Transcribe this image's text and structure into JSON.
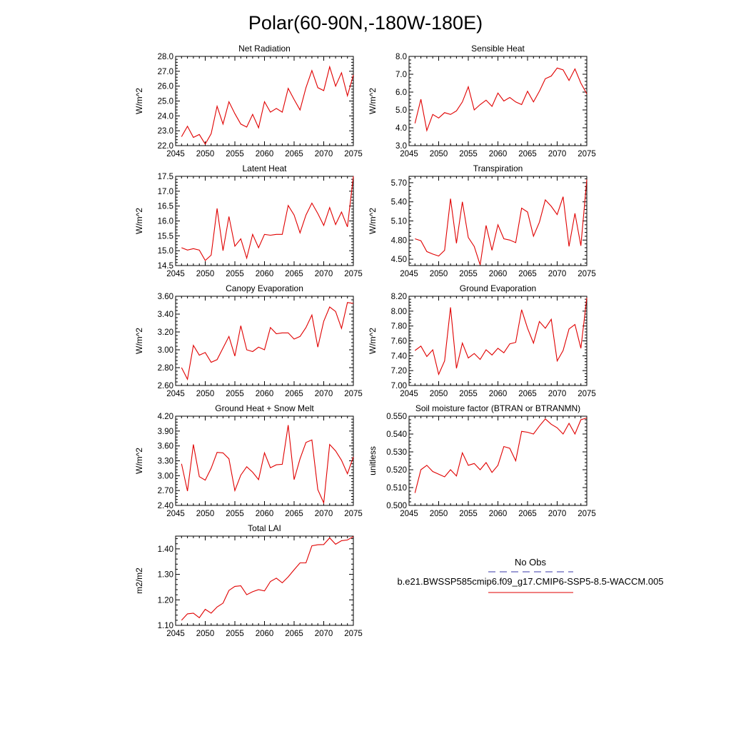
{
  "figure": {
    "title": "Polar(60-90N,-180W-180E)",
    "legend": {
      "obs_label": "No Obs",
      "model_label": "b.e21.BWSSP585cmip6.f09_g17.CMIP6-SSP5-8.5-WACCM.005",
      "obs_color": "#3a3aa8",
      "model_color": "#e00000"
    }
  },
  "chart_data": [
    {
      "type": "line",
      "title": "Net Radiation",
      "ylabel": "W/m^2",
      "xlim": [
        2045,
        2075
      ],
      "ylim": [
        22.0,
        28.0
      ],
      "yticks": [
        "22.0",
        "23.0",
        "24.0",
        "25.0",
        "26.0",
        "27.0",
        "28.0"
      ],
      "xticks": [
        "2045",
        "2050",
        "2055",
        "2060",
        "2065",
        "2070",
        "2075"
      ],
      "x": [
        2046,
        2047,
        2048,
        2049,
        2050,
        2051,
        2052,
        2053,
        2054,
        2055,
        2056,
        2057,
        2058,
        2059,
        2060,
        2061,
        2062,
        2063,
        2064,
        2065,
        2066,
        2067,
        2068,
        2069,
        2070,
        2071,
        2072,
        2073,
        2074,
        2075
      ],
      "series": [
        {
          "color": "#e00000",
          "values": [
            22.6,
            23.3,
            22.55,
            22.75,
            22.1,
            22.8,
            24.65,
            23.45,
            24.95,
            24.15,
            23.45,
            23.25,
            24.1,
            23.2,
            24.95,
            24.25,
            24.5,
            24.25,
            25.85,
            25.1,
            24.4,
            25.9,
            27.05,
            25.9,
            25.7,
            27.3,
            26.0,
            26.9,
            25.35,
            26.75
          ]
        }
      ]
    },
    {
      "type": "line",
      "title": "Sensible Heat",
      "ylabel": "W/m^2",
      "xlim": [
        2045,
        2075
      ],
      "ylim": [
        3.0,
        8.0
      ],
      "yticks": [
        "3.0",
        "4.0",
        "5.0",
        "6.0",
        "7.0",
        "8.0"
      ],
      "xticks": [
        "2045",
        "2050",
        "2055",
        "2060",
        "2065",
        "2070",
        "2075"
      ],
      "x": [
        2046,
        2047,
        2048,
        2049,
        2050,
        2051,
        2052,
        2053,
        2054,
        2055,
        2056,
        2057,
        2058,
        2059,
        2060,
        2061,
        2062,
        2063,
        2064,
        2065,
        2066,
        2067,
        2068,
        2069,
        2070,
        2071,
        2072,
        2073,
        2074,
        2075
      ],
      "series": [
        {
          "color": "#e00000",
          "values": [
            4.25,
            5.6,
            3.85,
            4.75,
            4.55,
            4.85,
            4.75,
            4.95,
            5.45,
            6.3,
            5.0,
            5.3,
            5.55,
            5.2,
            5.95,
            5.5,
            5.7,
            5.45,
            5.3,
            6.05,
            5.45,
            6.05,
            6.75,
            6.9,
            7.35,
            7.25,
            6.65,
            7.3,
            6.5,
            5.9
          ]
        }
      ]
    },
    {
      "type": "line",
      "title": "Latent Heat",
      "ylabel": "W/m^2",
      "xlim": [
        2045,
        2075
      ],
      "ylim": [
        14.5,
        17.5
      ],
      "yticks": [
        "14.5",
        "15.0",
        "15.5",
        "16.0",
        "16.5",
        "17.0",
        "17.5"
      ],
      "xticks": [
        "2045",
        "2050",
        "2055",
        "2060",
        "2065",
        "2070",
        "2075"
      ],
      "x": [
        2046,
        2047,
        2048,
        2049,
        2050,
        2051,
        2052,
        2053,
        2054,
        2055,
        2056,
        2057,
        2058,
        2059,
        2060,
        2061,
        2062,
        2063,
        2064,
        2065,
        2066,
        2067,
        2068,
        2069,
        2070,
        2071,
        2072,
        2073,
        2074,
        2075
      ],
      "series": [
        {
          "color": "#e00000",
          "values": [
            15.1,
            15.02,
            15.07,
            15.02,
            14.67,
            14.85,
            16.42,
            15.0,
            16.15,
            15.15,
            15.4,
            14.75,
            15.55,
            15.1,
            15.55,
            15.52,
            15.55,
            15.55,
            16.52,
            16.2,
            15.6,
            16.2,
            16.6,
            16.25,
            15.85,
            16.45,
            15.88,
            16.3,
            15.8,
            17.5
          ]
        }
      ]
    },
    {
      "type": "line",
      "title": "Transpiration",
      "ylabel": "W/m^2",
      "xlim": [
        2045,
        2075
      ],
      "ylim": [
        4.4,
        5.8
      ],
      "yticks": [
        "4.50",
        "4.80",
        "5.10",
        "5.40",
        "5.70"
      ],
      "ytick_values": [
        4.5,
        4.8,
        5.1,
        5.4,
        5.7
      ],
      "xticks": [
        "2045",
        "2050",
        "2055",
        "2060",
        "2065",
        "2070",
        "2075"
      ],
      "x": [
        2046,
        2047,
        2048,
        2049,
        2050,
        2051,
        2052,
        2053,
        2054,
        2055,
        2056,
        2057,
        2058,
        2059,
        2060,
        2061,
        2062,
        2063,
        2064,
        2065,
        2066,
        2067,
        2068,
        2069,
        2070,
        2071,
        2072,
        2073,
        2074,
        2075
      ],
      "series": [
        {
          "color": "#e00000",
          "values": [
            4.82,
            4.79,
            4.62,
            4.58,
            4.55,
            4.64,
            5.45,
            4.75,
            5.4,
            4.84,
            4.7,
            4.41,
            5.03,
            4.64,
            5.04,
            4.82,
            4.8,
            4.76,
            5.3,
            5.24,
            4.86,
            5.08,
            5.43,
            5.33,
            5.2,
            5.48,
            4.7,
            5.22,
            4.71,
            5.75
          ]
        }
      ]
    },
    {
      "type": "line",
      "title": "Canopy Evaporation",
      "ylabel": "W/m^2",
      "xlim": [
        2045,
        2075
      ],
      "ylim": [
        2.6,
        3.6
      ],
      "yticks": [
        "2.60",
        "2.80",
        "3.00",
        "3.20",
        "3.40",
        "3.60"
      ],
      "xticks": [
        "2045",
        "2050",
        "2055",
        "2060",
        "2065",
        "2070",
        "2075"
      ],
      "x": [
        2046,
        2047,
        2048,
        2049,
        2050,
        2051,
        2052,
        2053,
        2054,
        2055,
        2056,
        2057,
        2058,
        2059,
        2060,
        2061,
        2062,
        2063,
        2064,
        2065,
        2066,
        2067,
        2068,
        2069,
        2070,
        2071,
        2072,
        2073,
        2074,
        2075
      ],
      "series": [
        {
          "color": "#e00000",
          "values": [
            2.8,
            2.67,
            3.05,
            2.94,
            2.97,
            2.86,
            2.89,
            3.02,
            3.15,
            2.93,
            3.27,
            3.0,
            2.98,
            3.03,
            3.0,
            3.25,
            3.18,
            3.19,
            3.19,
            3.12,
            3.15,
            3.25,
            3.39,
            3.03,
            3.32,
            3.48,
            3.43,
            3.24,
            3.53,
            3.52
          ]
        }
      ]
    },
    {
      "type": "line",
      "title": "Ground Evaporation",
      "ylabel": "W/m^2",
      "xlim": [
        2045,
        2075
      ],
      "ylim": [
        7.0,
        8.2
      ],
      "yticks": [
        "7.00",
        "7.20",
        "7.40",
        "7.60",
        "7.80",
        "8.00",
        "8.20"
      ],
      "xticks": [
        "2045",
        "2050",
        "2055",
        "2060",
        "2065",
        "2070",
        "2075"
      ],
      "x": [
        2046,
        2047,
        2048,
        2049,
        2050,
        2051,
        2052,
        2053,
        2054,
        2055,
        2056,
        2057,
        2058,
        2059,
        2060,
        2061,
        2062,
        2063,
        2064,
        2065,
        2066,
        2067,
        2068,
        2069,
        2070,
        2071,
        2072,
        2073,
        2074,
        2075
      ],
      "series": [
        {
          "color": "#e00000",
          "values": [
            7.47,
            7.53,
            7.39,
            7.48,
            7.15,
            7.33,
            8.05,
            7.23,
            7.57,
            7.37,
            7.43,
            7.35,
            7.48,
            7.41,
            7.5,
            7.44,
            7.56,
            7.58,
            8.02,
            7.77,
            7.57,
            7.86,
            7.77,
            7.89,
            7.33,
            7.47,
            7.76,
            7.82,
            7.5,
            8.18
          ]
        }
      ]
    },
    {
      "type": "line",
      "title": "Ground Heat + Snow Melt",
      "ylabel": "W/m^2",
      "xlim": [
        2045,
        2075
      ],
      "ylim": [
        2.4,
        4.2
      ],
      "yticks": [
        "2.40",
        "2.70",
        "3.00",
        "3.30",
        "3.60",
        "3.90",
        "4.20"
      ],
      "xticks": [
        "2045",
        "2050",
        "2055",
        "2060",
        "2065",
        "2070",
        "2075"
      ],
      "x": [
        2046,
        2047,
        2048,
        2049,
        2050,
        2051,
        2052,
        2053,
        2054,
        2055,
        2056,
        2057,
        2058,
        2059,
        2060,
        2061,
        2062,
        2063,
        2064,
        2065,
        2066,
        2067,
        2068,
        2069,
        2070,
        2071,
        2072,
        2073,
        2074,
        2075
      ],
      "series": [
        {
          "color": "#e00000",
          "values": [
            3.24,
            2.69,
            3.63,
            2.98,
            2.91,
            3.15,
            3.47,
            3.46,
            3.34,
            2.7,
            3.01,
            3.18,
            3.07,
            2.92,
            3.46,
            3.16,
            3.22,
            3.23,
            4.02,
            2.92,
            3.34,
            3.67,
            3.72,
            2.72,
            2.45,
            3.63,
            3.5,
            3.31,
            3.04,
            3.38
          ]
        }
      ]
    },
    {
      "type": "line",
      "title": "Soil moisture factor (BTRAN or BTRANMN)",
      "ylabel": "unitless",
      "xlim": [
        2045,
        2075
      ],
      "ylim": [
        0.5,
        0.55
      ],
      "yticks": [
        "0.500",
        "0.510",
        "0.520",
        "0.530",
        "0.540",
        "0.550"
      ],
      "xticks": [
        "2045",
        "2050",
        "2055",
        "2060",
        "2065",
        "2070",
        "2075"
      ],
      "x": [
        2046,
        2047,
        2048,
        2049,
        2050,
        2051,
        2052,
        2053,
        2054,
        2055,
        2056,
        2057,
        2058,
        2059,
        2060,
        2061,
        2062,
        2063,
        2064,
        2065,
        2066,
        2067,
        2068,
        2069,
        2070,
        2071,
        2072,
        2073,
        2074,
        2075
      ],
      "series": [
        {
          "color": "#e00000",
          "values": [
            0.507,
            0.52,
            0.5225,
            0.519,
            0.5175,
            0.516,
            0.52,
            0.5165,
            0.5295,
            0.5225,
            0.5235,
            0.52,
            0.524,
            0.5185,
            0.5225,
            0.533,
            0.532,
            0.525,
            0.5415,
            0.541,
            0.54,
            0.5445,
            0.5485,
            0.5455,
            0.5435,
            0.54,
            0.546,
            0.54,
            0.548,
            0.549
          ]
        }
      ]
    },
    {
      "type": "line",
      "title": "Total LAI",
      "ylabel": "m2/m2",
      "xlim": [
        2045,
        2075
      ],
      "ylim": [
        1.1,
        1.45
      ],
      "yticks": [
        "1.10",
        "1.20",
        "1.30",
        "1.40"
      ],
      "ytick_values": [
        1.1,
        1.2,
        1.3,
        1.4
      ],
      "xticks": [
        "2045",
        "2050",
        "2055",
        "2060",
        "2065",
        "2070",
        "2075"
      ],
      "x": [
        2046,
        2047,
        2048,
        2049,
        2050,
        2051,
        2052,
        2053,
        2054,
        2055,
        2056,
        2057,
        2058,
        2059,
        2060,
        2061,
        2062,
        2063,
        2064,
        2065,
        2066,
        2067,
        2068,
        2069,
        2070,
        2071,
        2072,
        2073,
        2074,
        2075
      ],
      "series": [
        {
          "color": "#e00000",
          "values": [
            1.12,
            1.145,
            1.148,
            1.13,
            1.163,
            1.148,
            1.172,
            1.187,
            1.237,
            1.253,
            1.255,
            1.22,
            1.232,
            1.24,
            1.235,
            1.272,
            1.285,
            1.267,
            1.29,
            1.318,
            1.345,
            1.345,
            1.412,
            1.416,
            1.417,
            1.443,
            1.418,
            1.432,
            1.435,
            1.448
          ]
        }
      ]
    }
  ]
}
